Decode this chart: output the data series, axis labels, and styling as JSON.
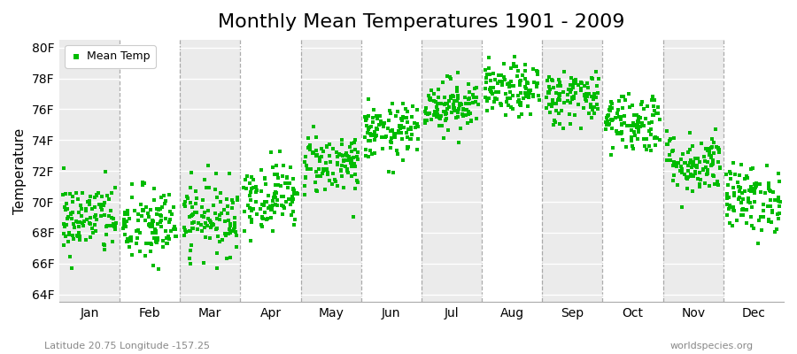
{
  "title": "Monthly Mean Temperatures 1901 - 2009",
  "ylabel": "Temperature",
  "subtitle": "Latitude 20.75 Longitude -157.25",
  "watermark": "worldspecies.org",
  "ytick_labels": [
    "64F",
    "66F",
    "68F",
    "70F",
    "72F",
    "74F",
    "76F",
    "78F",
    "80F"
  ],
  "ytick_values": [
    64,
    66,
    68,
    70,
    72,
    74,
    76,
    78,
    80
  ],
  "ylim": [
    63.5,
    80.5
  ],
  "months": [
    "Jan",
    "Feb",
    "Mar",
    "Apr",
    "May",
    "Jun",
    "Jul",
    "Aug",
    "Sep",
    "Oct",
    "Nov",
    "Dec"
  ],
  "month_means_F": [
    68.9,
    68.4,
    69.0,
    70.4,
    72.5,
    74.5,
    76.3,
    77.2,
    76.8,
    75.2,
    72.5,
    70.2
  ],
  "month_stds_F": [
    1.2,
    1.3,
    1.2,
    1.1,
    1.0,
    0.9,
    0.85,
    0.85,
    0.9,
    1.0,
    1.0,
    1.1
  ],
  "dot_color": "#00bb00",
  "dot_size": 7,
  "bg_color": "#ffffff",
  "plot_bg_odd": "#ffffff",
  "plot_bg_even": "#ebebeb",
  "n_years": 109,
  "seed": 42,
  "title_fontsize": 16,
  "axis_label_fontsize": 11,
  "tick_fontsize": 10,
  "dashed_line_color": "#999999"
}
